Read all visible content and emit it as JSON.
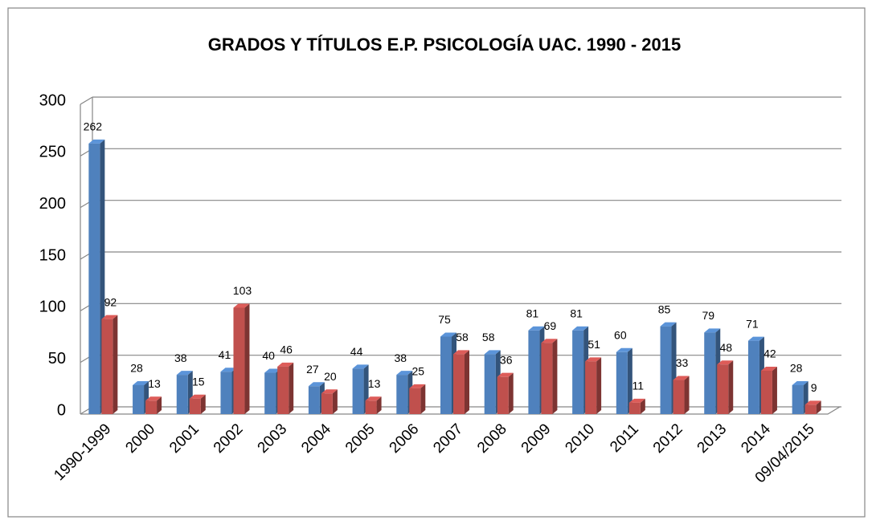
{
  "chart_data": {
    "type": "bar3d",
    "title": "GRADOS Y TÍTULOS E.P. PSICOLOGÍA UAC. 1990 - 2015",
    "categories": [
      "1990-1999",
      "2000",
      "2001",
      "2002",
      "2003",
      "2004",
      "2005",
      "2006",
      "2007",
      "2008",
      "2009",
      "2010",
      "2011",
      "2012",
      "2013",
      "2014",
      "09/04/2015"
    ],
    "series": [
      {
        "color": "#4f81bd",
        "values": [
          262,
          28,
          38,
          41,
          40,
          27,
          44,
          38,
          75,
          58,
          81,
          81,
          60,
          85,
          79,
          71,
          28
        ]
      },
      {
        "color": "#c0504d",
        "values": [
          92,
          13,
          15,
          103,
          46,
          20,
          13,
          25,
          58,
          36,
          69,
          51,
          11,
          33,
          48,
          42,
          9
        ]
      }
    ],
    "ylim": [
      0,
      300
    ],
    "yticks": [
      0,
      50,
      100,
      150,
      200,
      250,
      300
    ],
    "grid": true
  }
}
